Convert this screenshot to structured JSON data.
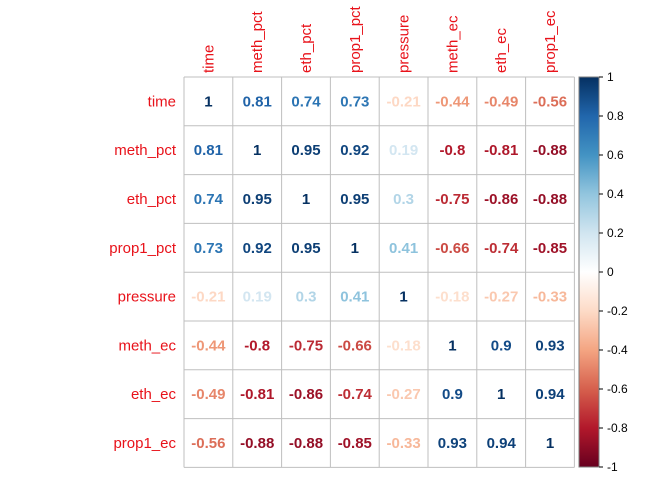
{
  "chart_data": {
    "type": "heatmap",
    "title": "",
    "variables": [
      "time",
      "meth_pct",
      "eth_pct",
      "prop1_pct",
      "pressure",
      "meth_ec",
      "eth_ec",
      "prop1_ec"
    ],
    "matrix": [
      [
        1,
        0.81,
        0.74,
        0.73,
        -0.21,
        -0.44,
        -0.49,
        -0.56
      ],
      [
        0.81,
        1,
        0.95,
        0.92,
        0.19,
        -0.8,
        -0.81,
        -0.88
      ],
      [
        0.74,
        0.95,
        1,
        0.95,
        0.3,
        -0.75,
        -0.86,
        -0.88
      ],
      [
        0.73,
        0.92,
        0.95,
        1,
        0.41,
        -0.66,
        -0.74,
        -0.85
      ],
      [
        -0.21,
        0.19,
        0.3,
        0.41,
        1,
        -0.18,
        -0.27,
        -0.33
      ],
      [
        -0.44,
        -0.8,
        -0.75,
        -0.66,
        -0.18,
        1,
        0.9,
        0.93
      ],
      [
        -0.49,
        -0.81,
        -0.86,
        -0.74,
        -0.27,
        0.9,
        1,
        0.94
      ],
      [
        -0.56,
        -0.88,
        -0.88,
        -0.85,
        -0.33,
        0.93,
        0.94,
        1
      ]
    ],
    "value_range": [
      -1,
      1
    ],
    "colorbar_ticks": [
      "1",
      "0.8",
      "0.6",
      "0.4",
      "0.2",
      "0",
      "-0.2",
      "-0.4",
      "-0.6",
      "-0.8",
      "-1"
    ],
    "colorbar_tick_values": [
      1,
      0.8,
      0.6,
      0.4,
      0.2,
      0,
      -0.2,
      -0.4,
      -0.6,
      -0.8,
      -1
    ],
    "label_color": "#e8121a",
    "grid_color": "#bfbfbf",
    "color_stops": [
      "#67001f",
      "#b2182b",
      "#d6604d",
      "#f4a582",
      "#fddbc7",
      "#ffffff",
      "#d1e5f0",
      "#92c5de",
      "#4393c3",
      "#2166ac",
      "#053061"
    ],
    "legend_position": "right"
  }
}
